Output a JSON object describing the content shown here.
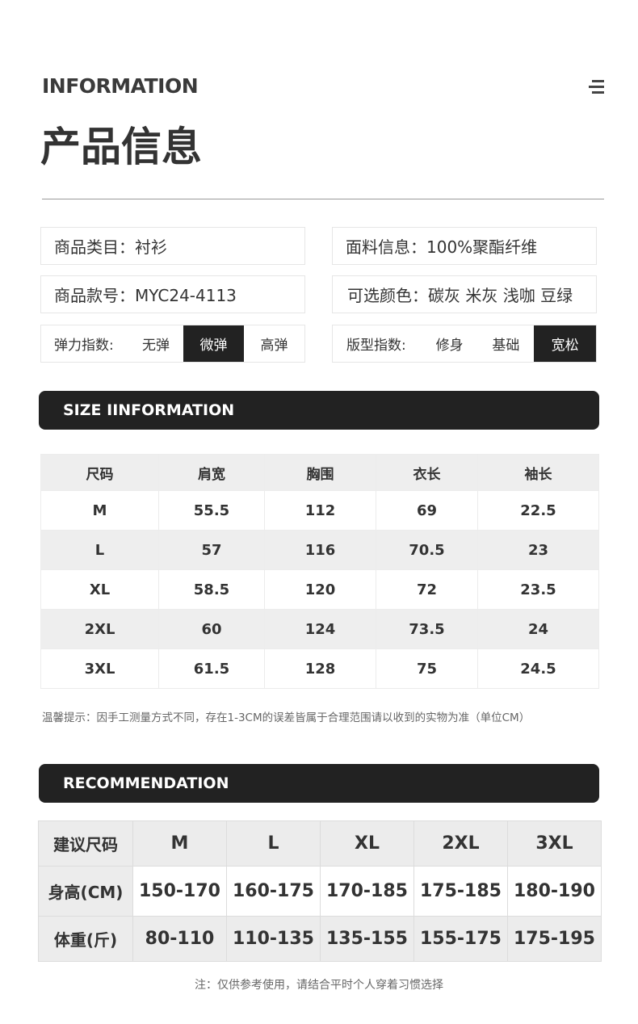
{
  "header": {
    "en_title": "INFORMATION",
    "cn_title": "产品信息",
    "menu_icon": "menu-icon"
  },
  "info": {
    "category": "商品类目：衬衫",
    "fabric": "面料信息：100%聚酯纤维",
    "model": "商品款号：MYC24-4113",
    "colors": "可选颜色：碳灰 米灰 浅咖 豆绿",
    "elasticity": {
      "label": "弹力指数:",
      "options": [
        "无弹",
        "微弹",
        "高弹"
      ],
      "selected": "微弹"
    },
    "fit": {
      "label": "版型指数:",
      "options": [
        "修身",
        "基础",
        "宽松"
      ],
      "selected": "宽松"
    }
  },
  "size_section": {
    "title": "SIZE IINFORMATION",
    "headers": [
      "尺码",
      "肩宽",
      "胸围",
      "衣长",
      "袖长"
    ],
    "rows": [
      [
        "M",
        "55.5",
        "112",
        "69",
        "22.5"
      ],
      [
        "L",
        "57",
        "116",
        "70.5",
        "23"
      ],
      [
        "XL",
        "58.5",
        "120",
        "72",
        "23.5"
      ],
      [
        "2XL",
        "60",
        "124",
        "73.5",
        "24"
      ],
      [
        "3XL",
        "61.5",
        "128",
        "75",
        "24.5"
      ]
    ],
    "note": "温馨提示：因手工测量方式不同，存在1-3CM的误差皆属于合理范围请以收到的实物为准（单位CM）"
  },
  "rec_section": {
    "title": "RECOMMENDATION",
    "rows": [
      [
        "建议尺码",
        "M",
        "L",
        "XL",
        "2XL",
        "3XL"
      ],
      [
        "身高(CM)",
        "150-170",
        "160-175",
        "170-185",
        "175-185",
        "180-190"
      ],
      [
        "体重(斤)",
        "80-110",
        "110-135",
        "135-155",
        "155-175",
        "175-195"
      ]
    ],
    "note": "注：仅供参考使用，请结合平时个人穿着习惯选择"
  },
  "colors": {
    "dark": "#222222",
    "row_gray": "#eeeeee"
  }
}
